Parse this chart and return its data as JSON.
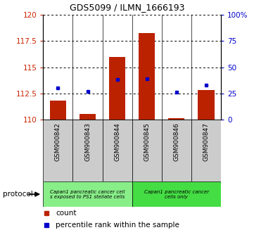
{
  "title": "GDS5099 / ILMN_1666193",
  "samples": [
    "GSM900842",
    "GSM900843",
    "GSM900844",
    "GSM900845",
    "GSM900846",
    "GSM900847"
  ],
  "red_values": [
    111.8,
    110.5,
    116.0,
    118.3,
    110.1,
    112.8
  ],
  "blue_values": [
    113.0,
    112.7,
    113.8,
    113.9,
    112.6,
    113.3
  ],
  "ylim_left": [
    110,
    120
  ],
  "ylim_right": [
    0,
    100
  ],
  "yticks_left": [
    110,
    112.5,
    115,
    117.5,
    120
  ],
  "yticks_right": [
    0,
    25,
    50,
    75,
    100
  ],
  "ytick_labels_left": [
    "110",
    "112.5",
    "115",
    "117.5",
    "120"
  ],
  "ytick_labels_right": [
    "0",
    "25",
    "50",
    "75",
    "100%"
  ],
  "protocol_labels": [
    "Capan1 pancreatic cancer cell\ns exposed to PS1 stellate cells",
    "Capan1 pancreatic cancer\ncells only"
  ],
  "protocol_colors": [
    "#88ee88",
    "#44dd44"
  ],
  "bar_bottom": 110,
  "bar_color": "#bb2200",
  "dot_color": "#0000cc",
  "bar_width": 0.55,
  "left_tick_color": "#cc2200",
  "right_tick_color": "#0000cc",
  "xtick_bg": "#cccccc",
  "title_fontsize": 9
}
